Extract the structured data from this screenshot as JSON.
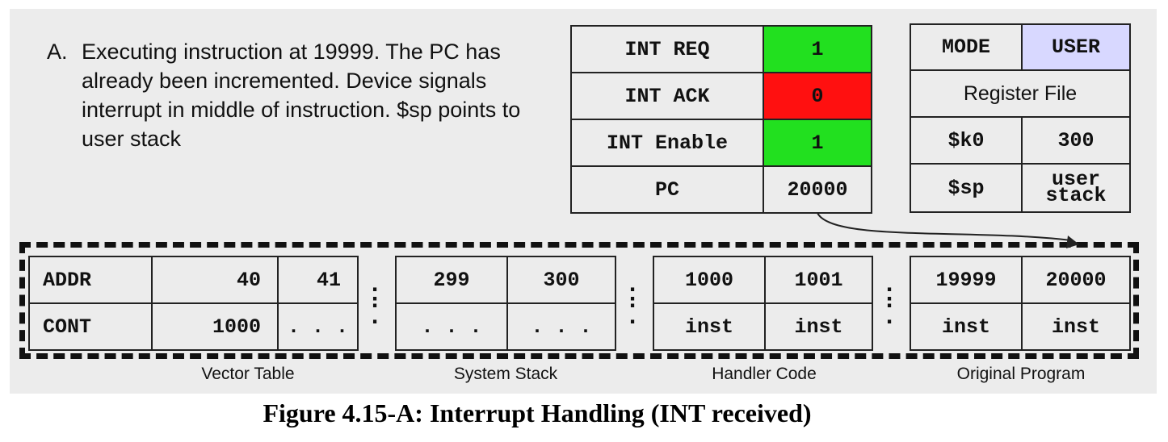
{
  "description": {
    "label": "A.",
    "text": "Executing instruction at 19999. The PC has already been incremented. Device signals interrupt in middle of instruction. $sp points to user stack"
  },
  "signals": [
    {
      "name": "INT REQ",
      "value": "1",
      "color": "#22e01f"
    },
    {
      "name": "INT ACK",
      "value": "0",
      "color": "#ff1010"
    },
    {
      "name": "INT Enable",
      "value": "1",
      "color": "#22e01f"
    },
    {
      "name": "PC",
      "value": "20000",
      "color": ""
    }
  ],
  "register_file": {
    "mode_label": "MODE",
    "mode_value": "USER",
    "title": "Register File",
    "registers": [
      {
        "name": "$k0",
        "value": "300"
      },
      {
        "name": "$sp",
        "value_line1": "user",
        "value_line2": "stack"
      }
    ]
  },
  "memory": {
    "row_labels": [
      "ADDR",
      "CONT"
    ],
    "vector_table": {
      "addrs": [
        "40",
        "41"
      ],
      "conts": [
        "1000",
        ". . ."
      ],
      "caption": "Vector Table"
    },
    "system_stack": {
      "addrs": [
        "299",
        "300"
      ],
      "conts": [
        ". . .",
        ". . ."
      ],
      "caption": "System Stack"
    },
    "handler_code": {
      "addrs": [
        "1000",
        "1001"
      ],
      "conts": [
        "inst",
        "inst"
      ],
      "caption": "Handler Code"
    },
    "original_program": {
      "addrs": [
        "19999",
        "20000"
      ],
      "conts": [
        "inst",
        "inst"
      ],
      "caption": "Original Program"
    }
  },
  "separator_dots": [
    ". : .",
    ". : .",
    ". : ."
  ],
  "figure_caption": "Figure 4.15-A: Interrupt Handling (INT received)"
}
